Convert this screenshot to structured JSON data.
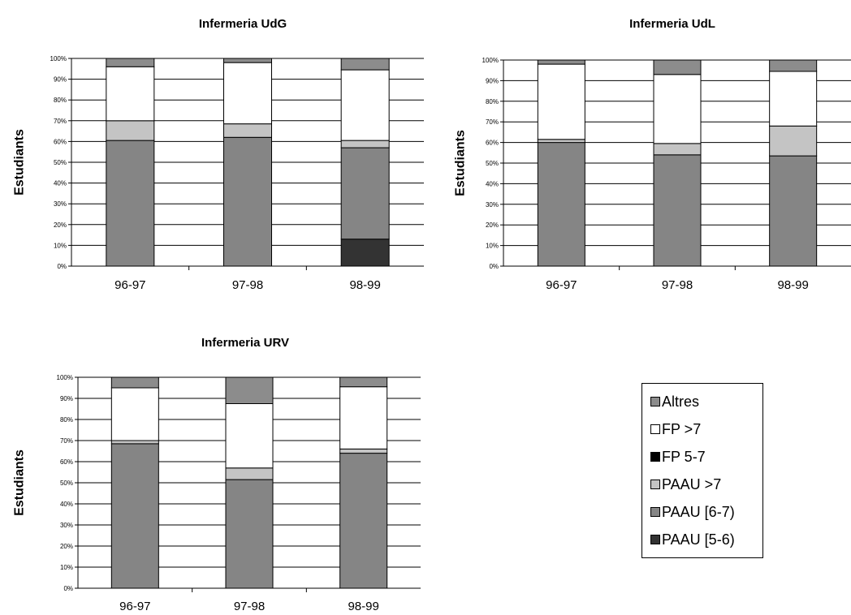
{
  "chart_data": [
    {
      "type": "bar",
      "stacked": true,
      "title": "Infermeria UdG",
      "ylabel": "Estudiants",
      "categories": [
        "96-97",
        "97-98",
        "98-99"
      ],
      "ylim": [
        0,
        100
      ],
      "yticks": [
        "0%",
        "10%",
        "20%",
        "30%",
        "40%",
        "50%",
        "60%",
        "70%",
        "80%",
        "90%",
        "100%"
      ],
      "series": [
        {
          "name": "PAAU [5-6)",
          "values": [
            0,
            0,
            13
          ]
        },
        {
          "name": "PAAU [6-7)",
          "values": [
            60.5,
            62,
            44
          ]
        },
        {
          "name": "PAAU >7",
          "values": [
            9.5,
            6.5,
            3.5
          ]
        },
        {
          "name": "FP 5-7",
          "values": [
            0,
            0,
            0
          ]
        },
        {
          "name": "FP >7",
          "values": [
            26,
            29.5,
            34
          ]
        },
        {
          "name": "Altres",
          "values": [
            4,
            2,
            5.5
          ]
        }
      ]
    },
    {
      "type": "bar",
      "stacked": true,
      "title": "Infermeria UdL",
      "ylabel": "Estudiants",
      "categories": [
        "96-97",
        "97-98",
        "98-99"
      ],
      "ylim": [
        0,
        100
      ],
      "yticks": [
        "0%",
        "10%",
        "20%",
        "30%",
        "40%",
        "50%",
        "60%",
        "70%",
        "80%",
        "90%",
        "100%"
      ],
      "series": [
        {
          "name": "PAAU [5-6)",
          "values": [
            0,
            0,
            0
          ]
        },
        {
          "name": "PAAU [6-7)",
          "values": [
            60,
            54,
            53.5
          ]
        },
        {
          "name": "PAAU >7",
          "values": [
            1.5,
            5.5,
            14.5
          ]
        },
        {
          "name": "FP 5-7",
          "values": [
            0,
            0,
            0
          ]
        },
        {
          "name": "FP >7",
          "values": [
            36.5,
            33.5,
            26.5
          ]
        },
        {
          "name": "Altres",
          "values": [
            2,
            7,
            5.5
          ]
        }
      ]
    },
    {
      "type": "bar",
      "stacked": true,
      "title": "Infermeria URV",
      "ylabel": "Estudiants",
      "categories": [
        "96-97",
        "97-98",
        "98-99"
      ],
      "ylim": [
        0,
        100
      ],
      "yticks": [
        "0%",
        "10%",
        "20%",
        "30%",
        "40%",
        "50%",
        "60%",
        "70%",
        "80%",
        "90%",
        "100%"
      ],
      "series": [
        {
          "name": "PAAU [5-6)",
          "values": [
            0,
            0,
            0
          ]
        },
        {
          "name": "PAAU [6-7)",
          "values": [
            68.5,
            51.5,
            64
          ]
        },
        {
          "name": "PAAU >7",
          "values": [
            1.5,
            5.5,
            2
          ]
        },
        {
          "name": "FP 5-7",
          "values": [
            0,
            0,
            0
          ]
        },
        {
          "name": "FP >7",
          "values": [
            25,
            30.5,
            29.5
          ]
        },
        {
          "name": "Altres",
          "values": [
            5,
            12.5,
            4.5
          ]
        }
      ]
    }
  ],
  "legend": {
    "items": [
      {
        "label": "Altres",
        "color": "#8c8c8c"
      },
      {
        "label": "FP >7",
        "color": "#ffffff"
      },
      {
        "label": "FP 5-7",
        "color": "#000000"
      },
      {
        "label": "PAAU >7",
        "color": "#c4c4c4"
      },
      {
        "label": "PAAU [6-7)",
        "color": "#858585"
      },
      {
        "label": "PAAU [5-6)",
        "color": "#333333"
      }
    ]
  },
  "colors": {
    "PAAU [5-6)": "#333333",
    "PAAU [6-7)": "#858585",
    "PAAU >7": "#c4c4c4",
    "FP 5-7": "#000000",
    "FP >7": "#ffffff",
    "Altres": "#8c8c8c"
  }
}
